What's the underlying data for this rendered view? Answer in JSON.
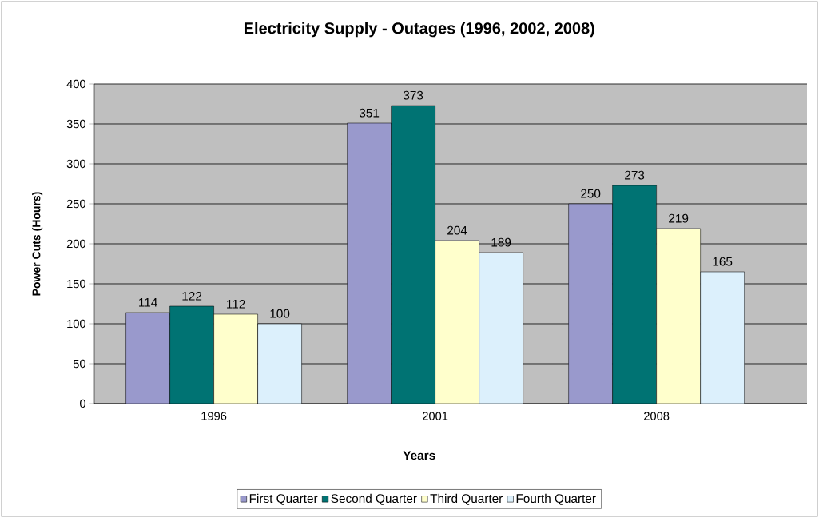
{
  "chart_data": {
    "type": "bar",
    "title": "Electricity Supply - Outages (1996, 2002, 2008)",
    "xlabel": "Years",
    "ylabel": "Power Cuts (Hours)",
    "categories": [
      "1996",
      "2001",
      "2008"
    ],
    "series": [
      {
        "name": "First Quarter",
        "color": "#9999cc",
        "values": [
          114,
          351,
          250
        ]
      },
      {
        "name": "Second Quarter",
        "color": "#007373",
        "values": [
          122,
          373,
          273
        ]
      },
      {
        "name": "Third Quarter",
        "color": "#ffffcc",
        "values": [
          112,
          204,
          219
        ]
      },
      {
        "name": "Fourth Quarter",
        "color": "#dcf0fc",
        "values": [
          100,
          189,
          165
        ]
      }
    ],
    "ylim": [
      0,
      400
    ],
    "yticks": [
      0,
      50,
      100,
      150,
      200,
      250,
      300,
      350,
      400
    ],
    "grid": "y",
    "legend": "bottom",
    "data_labels": true
  }
}
